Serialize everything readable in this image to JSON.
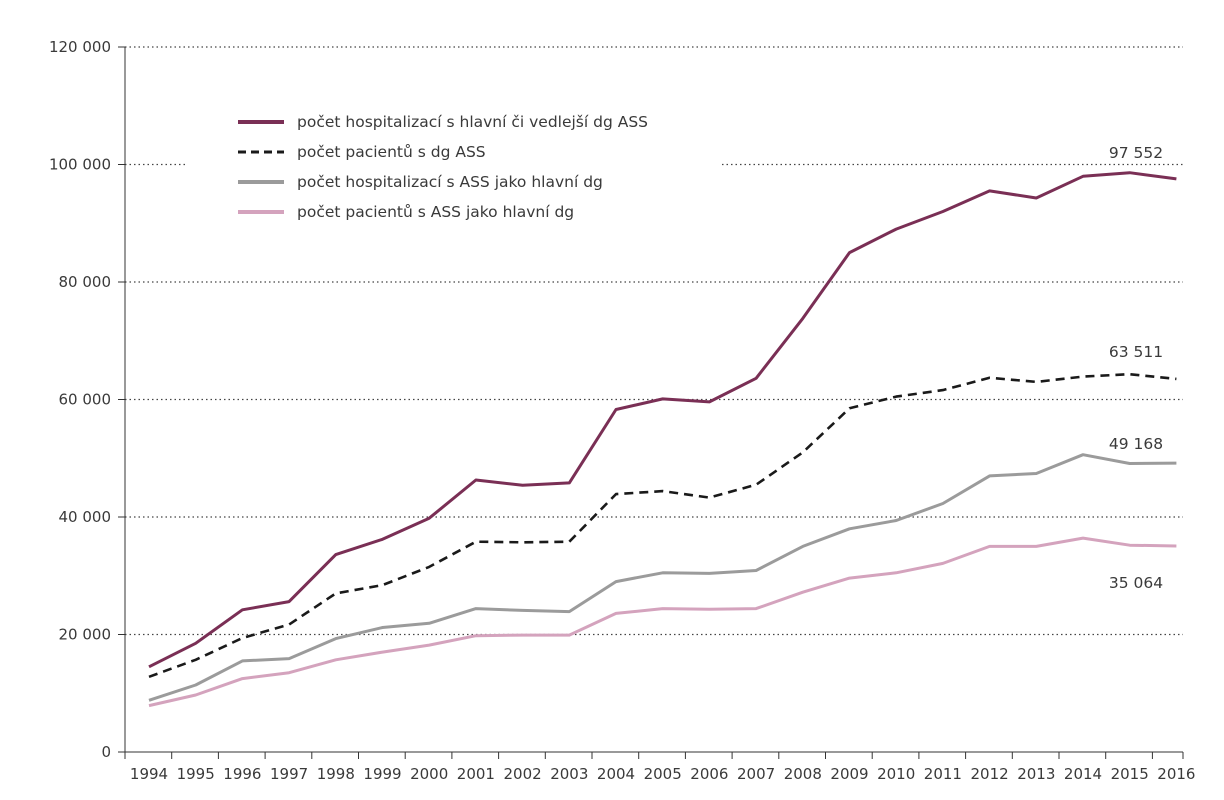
{
  "chart_data": {
    "type": "line",
    "title": "",
    "xlabel": "",
    "ylabel": "",
    "ylim": [
      0,
      120000
    ],
    "y_ticks": [
      0,
      20000,
      40000,
      60000,
      80000,
      100000,
      120000
    ],
    "y_tick_labels": [
      "0",
      "20 000",
      "40 000",
      "60 000",
      "80 000",
      "100 000",
      "120 000"
    ],
    "grid": "horizontal dotted",
    "legend_position": "top-left",
    "x": [
      "1994",
      "1995",
      "1996",
      "1997",
      "1998",
      "1999",
      "2000",
      "2001",
      "2002",
      "2003",
      "2004",
      "2005",
      "2006",
      "2007",
      "2008",
      "2009",
      "2010",
      "2011",
      "2012",
      "2013",
      "2014",
      "2015",
      "2016"
    ],
    "series": [
      {
        "name": "počet hospitalizací s hlavní či vedlejší dg ASS",
        "color": "#7a2f55",
        "dash": "solid",
        "values": [
          14500,
          18500,
          24200,
          25600,
          33600,
          36200,
          39800,
          46300,
          45400,
          45800,
          58300,
          60100,
          59600,
          63600,
          73800,
          85000,
          89000,
          92000,
          95500,
          94300,
          98000,
          98600,
          97552
        ],
        "end_label": "97 552"
      },
      {
        "name": "počet pacientů s dg ASS",
        "color": "#1a1a1a",
        "dash": "dashed",
        "values": [
          12800,
          15700,
          19400,
          21700,
          27000,
          28400,
          31500,
          35800,
          35700,
          35800,
          43900,
          44400,
          43300,
          45500,
          51000,
          58500,
          60500,
          61600,
          63700,
          63000,
          63900,
          64300,
          63511
        ],
        "end_label": "63 511"
      },
      {
        "name": "počet hospitalizací s ASS jako hlavní dg",
        "color": "#9b9b9b",
        "dash": "solid",
        "values": [
          8800,
          11400,
          15500,
          15900,
          19300,
          21200,
          21900,
          24400,
          24100,
          23900,
          29000,
          30500,
          30400,
          30900,
          35000,
          38000,
          39400,
          42300,
          47000,
          47400,
          50600,
          49100,
          49168
        ],
        "end_label": "49 168"
      },
      {
        "name": "počet pacientů s ASS jako hlavní dg",
        "color": "#d4a3bd",
        "dash": "solid",
        "values": [
          7900,
          9700,
          12500,
          13500,
          15700,
          17000,
          18200,
          19800,
          19900,
          19900,
          23600,
          24400,
          24300,
          24400,
          27200,
          29600,
          30500,
          32100,
          35000,
          35000,
          36400,
          35200,
          35064
        ],
        "end_label": "35 064"
      }
    ]
  }
}
